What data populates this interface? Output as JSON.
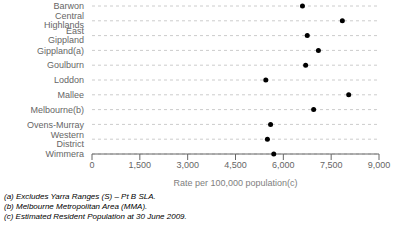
{
  "chart_data": {
    "type": "scatter",
    "orientation": "horizontal",
    "categories": [
      "Barwon",
      "Central Highlands",
      "East Gippland",
      "Gippland(a)",
      "Goulburn",
      "Loddon",
      "Mallee",
      "Melbourne(b)",
      "Ovens-Murray",
      "Western District",
      "Wimmera"
    ],
    "values": [
      6600,
      7850,
      6750,
      7100,
      6700,
      5450,
      8050,
      6950,
      5600,
      5500,
      5700
    ],
    "color": "#000000",
    "xlabel": "Rate per 100,000 population(c)",
    "xlim": [
      0,
      9000
    ],
    "xticks": [
      0,
      {
        "value": 1500,
        "label": "1,500"
      },
      {
        "value": 3000,
        "label": "3,000"
      },
      {
        "value": 4500,
        "label": "4,500"
      },
      {
        "value": 6000,
        "label": "6,000"
      },
      {
        "value": 7500,
        "label": "7,500"
      },
      {
        "value": 9000,
        "label": "9,000"
      }
    ],
    "grid": true,
    "annotations": [
      "(a) Excludes Yarra Ranges (S) – Pt B SLA.",
      "(b) Melbourne Metropolitan Area (MMA).",
      "(c) Estimated Resident Population at 30 June 2009."
    ]
  }
}
